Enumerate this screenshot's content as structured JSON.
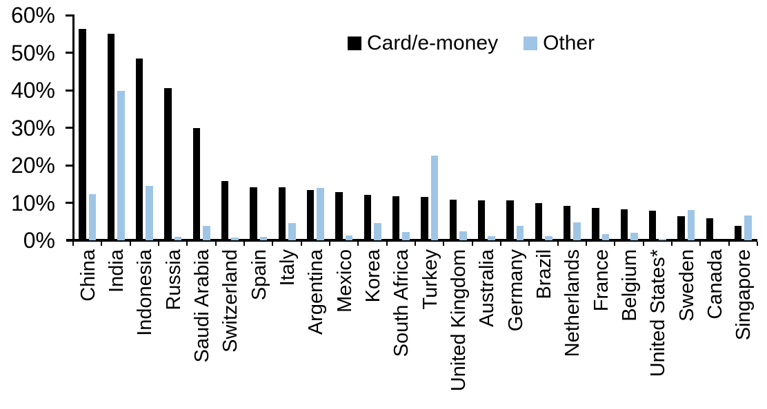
{
  "chart_data": {
    "type": "bar",
    "title": "",
    "xlabel": "",
    "ylabel": "",
    "categories": [
      "China",
      "India",
      "Indonesia",
      "Russia",
      "Saudi Arabia",
      "Switzerland",
      "Spain",
      "Italy",
      "Argentina",
      "Mexico",
      "Korea",
      "South Africa",
      "Turkey",
      "United Kingdom",
      "Australia",
      "Germany",
      "Brazil",
      "Netherlands",
      "France",
      "Belgium",
      "United States*",
      "Sweden",
      "Canada",
      "Singapore"
    ],
    "series": [
      {
        "name": "Card/e-money",
        "color": "#000000",
        "values": [
          56.3,
          55.1,
          48.4,
          40.6,
          29.9,
          15.7,
          14.2,
          14.1,
          13.4,
          12.9,
          12.2,
          11.7,
          11.6,
          10.9,
          10.7,
          10.6,
          10.0,
          9.2,
          8.6,
          8.2,
          7.9,
          6.5,
          5.9,
          3.9
        ]
      },
      {
        "name": "Other",
        "color": "#9FC5E6",
        "values": [
          12.3,
          39.8,
          14.5,
          1.0,
          3.9,
          0.8,
          1.0,
          4.6,
          13.9,
          1.3,
          4.6,
          2.3,
          22.6,
          2.4,
          1.1,
          3.9,
          1.1,
          4.8,
          1.6,
          2.1,
          0.3,
          8.1,
          0.0,
          6.7
        ]
      }
    ],
    "y_axis": {
      "min": 0,
      "max": 60,
      "step": 10,
      "tick_labels": [
        "0%",
        "10%",
        "20%",
        "30%",
        "40%",
        "50%",
        "60%"
      ]
    },
    "grid": false,
    "legend_position": "top-center",
    "category_labels_rotation_deg": -90
  }
}
